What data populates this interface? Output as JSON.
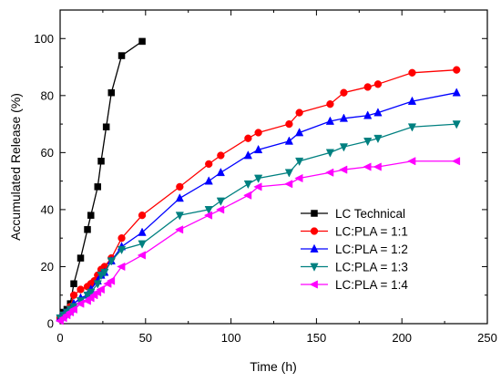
{
  "chart_data": {
    "type": "line",
    "title": "",
    "xlabel": "Time (h)",
    "ylabel": "Accumulated Release (%)",
    "xlim": [
      0,
      250
    ],
    "ylim": [
      0,
      110
    ],
    "xticks": [
      0,
      50,
      100,
      150,
      200,
      250
    ],
    "yticks": [
      0,
      20,
      40,
      60,
      80,
      100
    ],
    "grid": false,
    "legend_position": "lower-right",
    "series": [
      {
        "name": "LC Technical",
        "color": "#000000",
        "marker": "square",
        "x": [
          0,
          2,
          4,
          6,
          8,
          12,
          16,
          18,
          22,
          24,
          27,
          30,
          36,
          48
        ],
        "y": [
          2,
          4,
          5,
          7,
          14,
          23,
          33,
          38,
          48,
          57,
          69,
          81,
          94,
          99
        ]
      },
      {
        "name": "LC:PLA = 1:1",
        "color": "#ff0000",
        "marker": "circle",
        "x": [
          0,
          2,
          4,
          6,
          8,
          12,
          16,
          18,
          20,
          22,
          24,
          26,
          30,
          36,
          48,
          70,
          87,
          94,
          110,
          116,
          134,
          140,
          158,
          166,
          180,
          186,
          206,
          232
        ],
        "y": [
          2,
          3,
          4,
          6,
          10,
          12,
          13,
          14,
          15,
          17,
          19,
          20,
          23,
          30,
          38,
          48,
          56,
          59,
          65,
          67,
          70,
          74,
          77,
          81,
          83,
          84,
          88,
          89
        ]
      },
      {
        "name": "LC:PLA = 1:2",
        "color": "#0000ff",
        "marker": "triangle-up",
        "x": [
          0,
          2,
          4,
          6,
          8,
          12,
          16,
          18,
          22,
          24,
          26,
          30,
          36,
          48,
          70,
          87,
          94,
          110,
          116,
          134,
          140,
          158,
          166,
          180,
          186,
          206,
          232
        ],
        "y": [
          2,
          3,
          4,
          5,
          7,
          9,
          10,
          12,
          15,
          17,
          18,
          22,
          27,
          32,
          44,
          50,
          53,
          59,
          61,
          64,
          67,
          71,
          72,
          73,
          74,
          78,
          81
        ]
      },
      {
        "name": "LC:PLA = 1:3",
        "color": "#008080",
        "marker": "triangle-down",
        "x": [
          0,
          2,
          4,
          6,
          8,
          12,
          16,
          18,
          22,
          24,
          26,
          30,
          36,
          48,
          70,
          87,
          94,
          110,
          116,
          134,
          140,
          158,
          166,
          180,
          186,
          206,
          232
        ],
        "y": [
          2,
          3,
          4,
          5,
          6,
          8,
          10,
          11,
          14,
          17,
          18,
          22,
          26,
          28,
          38,
          40,
          43,
          49,
          51,
          53,
          57,
          60,
          62,
          64,
          65,
          69,
          70
        ]
      },
      {
        "name": "LC:PLA = 1:4",
        "color": "#ff00ff",
        "marker": "triangle-left",
        "x": [
          0,
          2,
          4,
          6,
          8,
          12,
          16,
          18,
          20,
          22,
          24,
          28,
          30,
          36,
          48,
          70,
          87,
          94,
          110,
          116,
          134,
          140,
          158,
          166,
          180,
          186,
          206,
          232
        ],
        "y": [
          1,
          2,
          3,
          4,
          5,
          7,
          8,
          9,
          10,
          11,
          12,
          14,
          15,
          20,
          24,
          33,
          38,
          40,
          45,
          48,
          49,
          51,
          53,
          54,
          55,
          55,
          57,
          57
        ]
      }
    ]
  }
}
